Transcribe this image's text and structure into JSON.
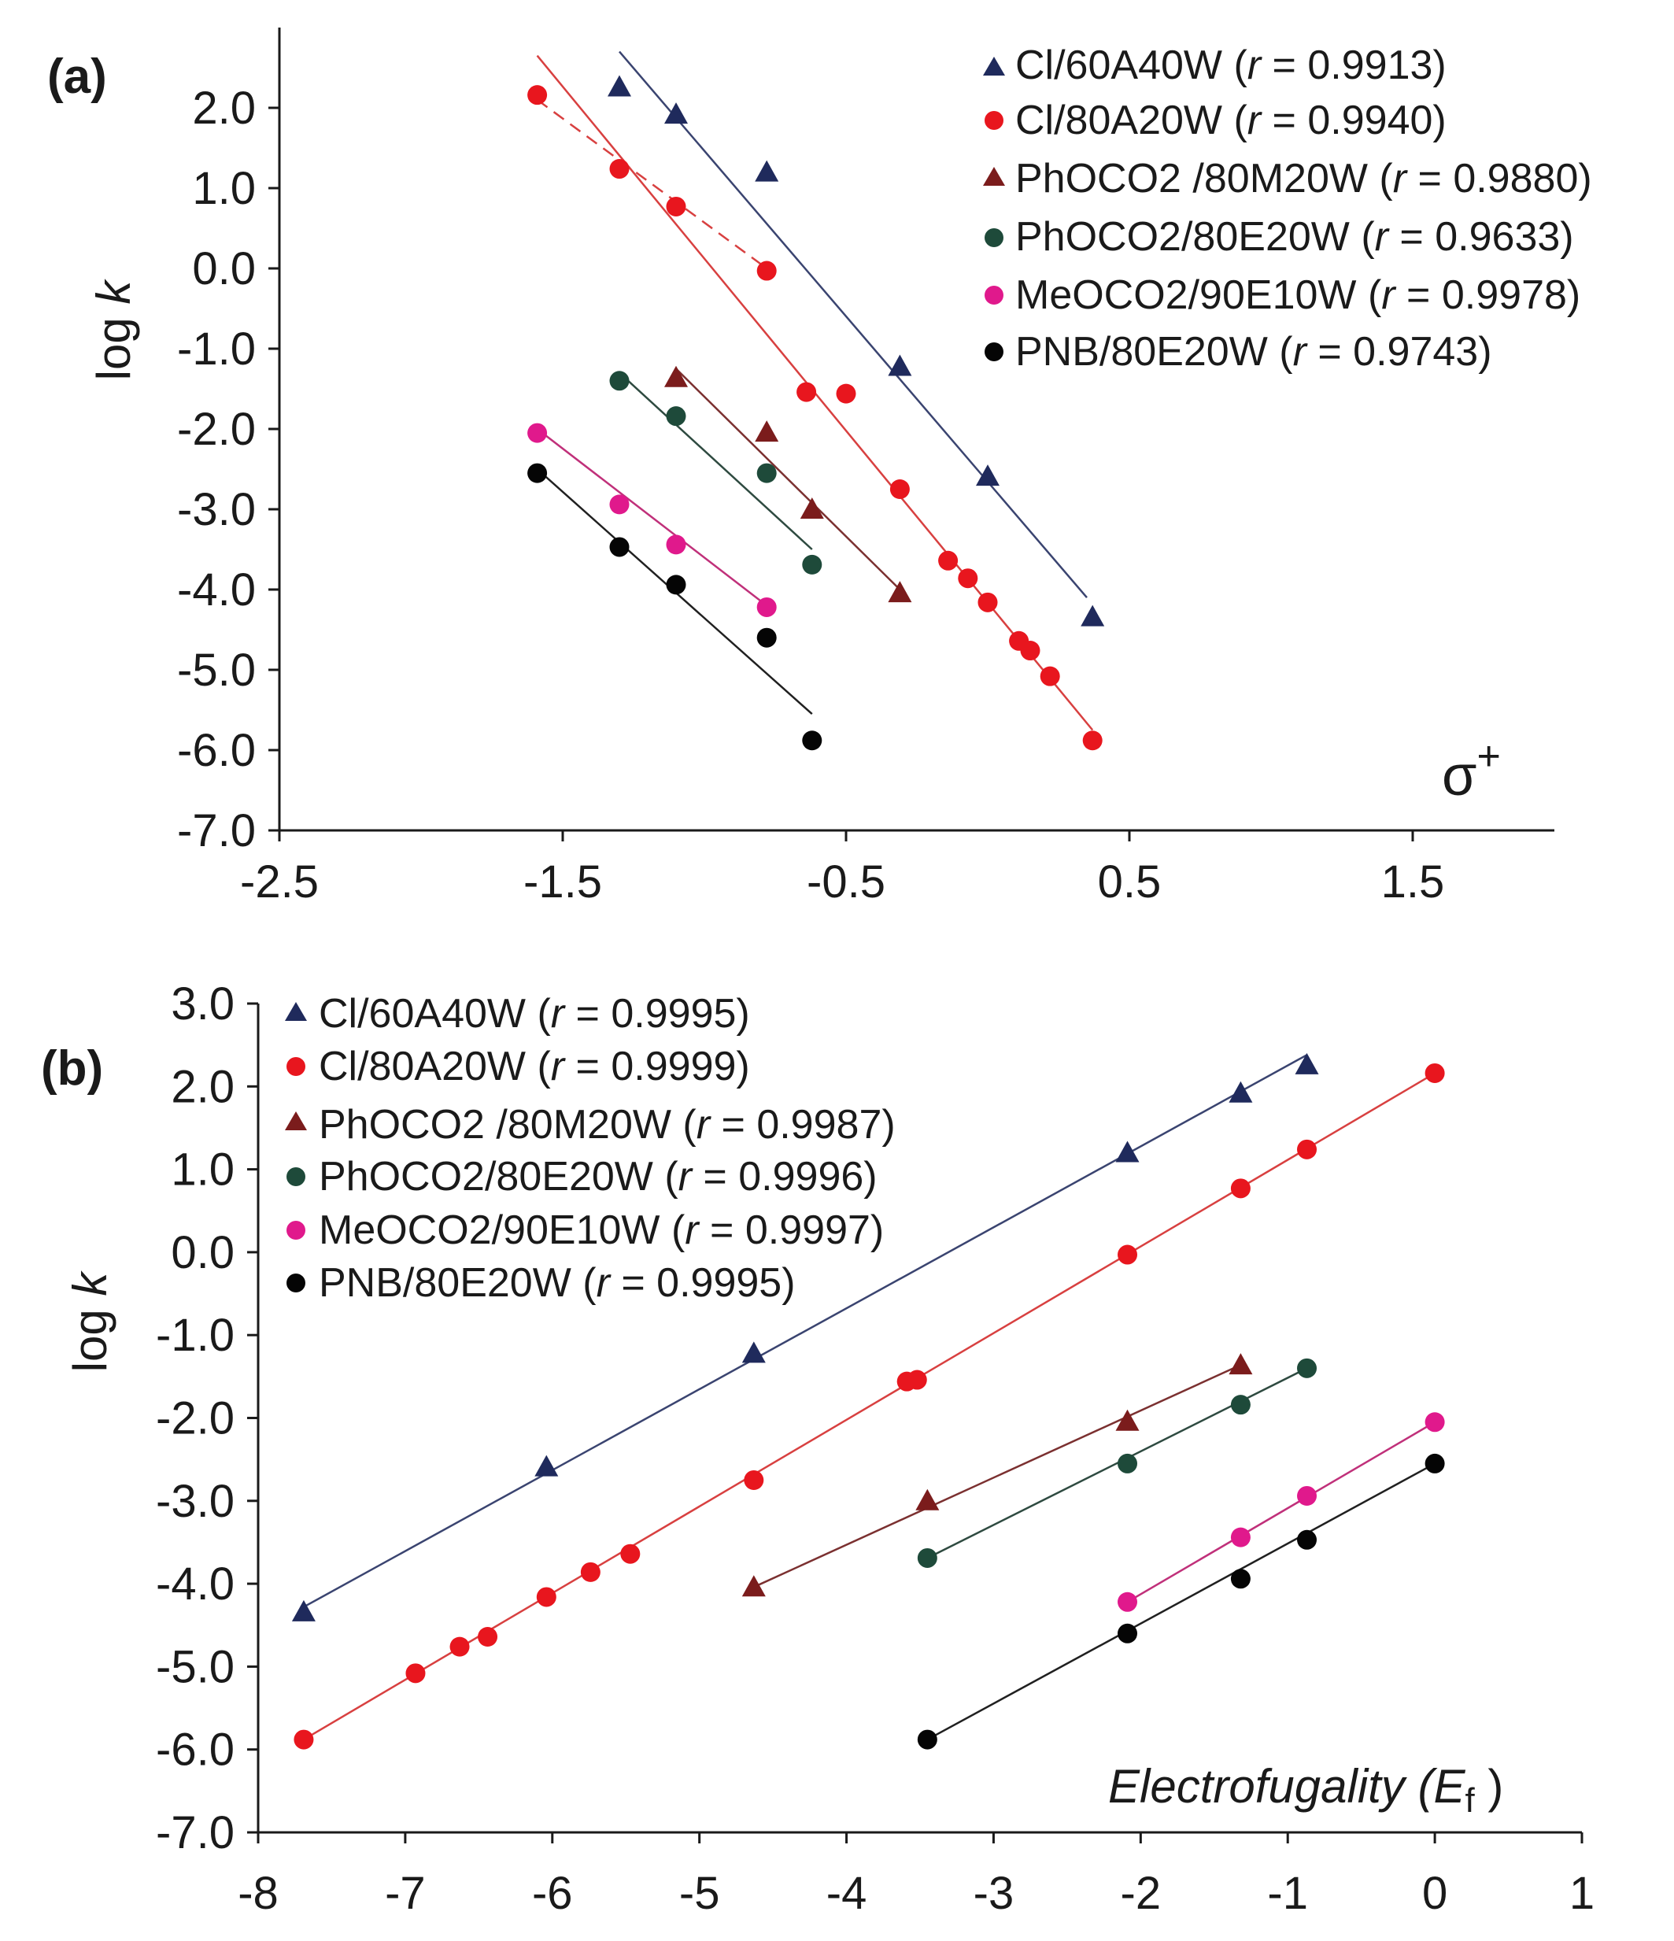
{
  "chart_data": [
    {
      "id": "a",
      "type": "scatter",
      "panel_label": "(a)",
      "xlabel": "σ+",
      "ylabel": "log k",
      "xlim": [
        -2.5,
        2.0
      ],
      "ylim": [
        -7.0,
        3.0
      ],
      "xticks": [
        -2.5,
        -1.5,
        -0.5,
        0.5,
        1.5
      ],
      "xtick_labels": [
        "-2.5",
        "-1.5",
        "-0.5",
        "0.5",
        "1.5"
      ],
      "yticks": [
        -7,
        -6,
        -5,
        -4,
        -3,
        -2,
        -1,
        0,
        1,
        2
      ],
      "ytick_labels": [
        "-7.0",
        "-6.0",
        "-5.0",
        "-4.0",
        "-3.0",
        "-2.0",
        "-1.0",
        "0.0",
        "1.0",
        "2.0"
      ],
      "series": [
        {
          "name": "Cl/60A40W",
          "r": "0.9913",
          "marker": "triangle",
          "color": "#1f2a5c",
          "line_color": "#3a4470",
          "x": [
            -1.3,
            -1.1,
            -0.78,
            -0.31,
            0.0,
            0.37
          ],
          "y": [
            2.26,
            1.92,
            1.2,
            -1.22,
            -2.59,
            -4.34
          ],
          "fit": [
            [
              -1.3,
              2.7
            ],
            [
              0.35,
              -4.1
            ]
          ]
        },
        {
          "name": "Cl/80A20W",
          "r": "0.9940",
          "marker": "circle",
          "color": "#e8161e",
          "line_color": "#d84040",
          "x": [
            -1.59,
            -1.3,
            -1.1,
            -0.78,
            -0.64,
            -0.5,
            -0.31,
            -0.14,
            -0.07,
            0.0,
            0.11,
            0.15,
            0.22,
            0.37
          ],
          "y": [
            2.16,
            1.24,
            0.77,
            -0.03,
            -1.54,
            -1.56,
            -2.75,
            -3.64,
            -3.86,
            -4.16,
            -4.64,
            -4.76,
            -5.08,
            -5.88
          ],
          "fit": [
            [
              -1.59,
              2.65
            ],
            [
              0.37,
              -5.75
            ]
          ],
          "fit_dashed": [
            [
              -1.59,
              2.1
            ],
            [
              -0.78,
              0.0
            ]
          ]
        },
        {
          "name": "PhOCO2 /80M20W",
          "r": "0.9880",
          "marker": "triangle",
          "color": "#7b1c1c",
          "line_color": "#7b3030",
          "x": [
            -1.1,
            -0.78,
            -0.62,
            -0.31
          ],
          "y": [
            -1.36,
            -2.04,
            -3.0,
            -4.04
          ],
          "fit": [
            [
              -1.1,
              -1.25
            ],
            [
              -0.31,
              -4.0
            ]
          ]
        },
        {
          "name": "PhOCO2/80E20W",
          "r": "0.9633",
          "marker": "circle",
          "color": "#1e4a3a",
          "line_color": "#2e4a40",
          "x": [
            -1.3,
            -1.1,
            -0.78,
            -0.62
          ],
          "y": [
            -1.4,
            -1.84,
            -2.55,
            -3.69
          ],
          "fit": [
            [
              -1.3,
              -1.3
            ],
            [
              -0.62,
              -3.5
            ]
          ]
        },
        {
          "name": "MeOCO2/90E10W",
          "r": "0.9978",
          "marker": "circle",
          "color": "#e0198c",
          "line_color": "#c0307a",
          "x": [
            -1.59,
            -1.3,
            -1.1,
            -0.78
          ],
          "y": [
            -2.05,
            -2.94,
            -3.44,
            -4.22
          ],
          "fit": [
            [
              -1.59,
              -2.0
            ],
            [
              -0.78,
              -4.2
            ]
          ]
        },
        {
          "name": "PNB/80E20W",
          "r": "0.9743",
          "marker": "circle",
          "color": "#050505",
          "line_color": "#202020",
          "x": [
            -1.59,
            -1.3,
            -1.1,
            -0.78,
            -0.62
          ],
          "y": [
            -2.55,
            -3.47,
            -3.94,
            -4.6,
            -5.88
          ],
          "fit": [
            [
              -1.59,
              -2.5
            ],
            [
              -0.62,
              -5.55
            ]
          ]
        }
      ]
    },
    {
      "id": "b",
      "type": "scatter",
      "panel_label": "(b)",
      "xlabel": "Electrofugality (Ef)",
      "ylabel": "log k",
      "xlim": [
        -8,
        1
      ],
      "ylim": [
        -7.0,
        3.0
      ],
      "xticks": [
        -8,
        -7,
        -6,
        -5,
        -4,
        -3,
        -2,
        -1,
        0,
        1
      ],
      "xtick_labels": [
        "-8",
        "-7",
        "-6",
        "-5",
        "-4",
        "-3",
        "-2",
        "-1",
        "0",
        "1"
      ],
      "yticks": [
        -7,
        -6,
        -5,
        -4,
        -3,
        -2,
        -1,
        0,
        1,
        2,
        3
      ],
      "ytick_labels": [
        "-7.0",
        "-6.0",
        "-5.0",
        "-4.0",
        "-3.0",
        "-2.0",
        "-1.0",
        "0.0",
        "1.0",
        "2.0",
        "3.0"
      ],
      "series": [
        {
          "name": "Cl/60A40W",
          "r": "0.9995",
          "marker": "triangle",
          "color": "#1f2a5c",
          "line_color": "#3a4470",
          "x": [
            -7.69,
            -6.04,
            -4.63,
            -2.09,
            -1.32,
            -0.87
          ],
          "y": [
            -4.34,
            -2.59,
            -1.22,
            1.2,
            1.92,
            2.26
          ],
          "fit": [
            [
              -7.69,
              -4.28
            ],
            [
              -0.87,
              2.38
            ]
          ]
        },
        {
          "name": "Cl/80A20W",
          "r": "0.9999",
          "marker": "circle",
          "color": "#e8161e",
          "line_color": "#d84040",
          "x": [
            -7.69,
            -6.93,
            -6.63,
            -6.44,
            -6.04,
            -5.74,
            -5.47,
            -4.63,
            -3.59,
            -3.52,
            -2.09,
            -1.32,
            -0.87,
            0.0
          ],
          "y": [
            -5.88,
            -5.08,
            -4.76,
            -4.64,
            -4.16,
            -3.86,
            -3.64,
            -2.75,
            -1.56,
            -1.54,
            -0.03,
            0.77,
            1.24,
            2.16
          ],
          "fit": [
            [
              -7.69,
              -5.88
            ],
            [
              0.0,
              2.16
            ]
          ]
        },
        {
          "name": "PhOCO2 /80M20W",
          "r": "0.9987",
          "marker": "triangle",
          "color": "#7b1c1c",
          "line_color": "#7b3030",
          "x": [
            -4.63,
            -3.45,
            -2.09,
            -1.32
          ],
          "y": [
            -4.04,
            -3.0,
            -2.04,
            -1.36
          ],
          "fit": [
            [
              -4.63,
              -4.04
            ],
            [
              -1.32,
              -1.36
            ]
          ]
        },
        {
          "name": "PhOCO2/80E20W",
          "r": "0.9996",
          "marker": "circle",
          "color": "#1e4a3a",
          "line_color": "#2e4a40",
          "x": [
            -3.45,
            -2.09,
            -1.32,
            -0.87
          ],
          "y": [
            -3.69,
            -2.55,
            -1.84,
            -1.4
          ],
          "fit": [
            [
              -3.45,
              -3.69
            ],
            [
              -0.87,
              -1.4
            ]
          ]
        },
        {
          "name": "MeOCO2/90E10W",
          "r": "0.9997",
          "marker": "circle",
          "color": "#e0198c",
          "line_color": "#c0307a",
          "x": [
            -2.09,
            -1.32,
            -0.87,
            0.0
          ],
          "y": [
            -4.22,
            -3.44,
            -2.94,
            -2.05
          ],
          "fit": [
            [
              -2.09,
              -4.22
            ],
            [
              0.0,
              -2.05
            ]
          ]
        },
        {
          "name": "PNB/80E20W",
          "r": "0.9995",
          "marker": "circle",
          "color": "#050505",
          "line_color": "#202020",
          "x": [
            -3.45,
            -2.09,
            -1.32,
            -0.87,
            0.0
          ],
          "y": [
            -5.88,
            -4.6,
            -3.94,
            -3.47,
            -2.55
          ],
          "fit": [
            [
              -3.45,
              -5.88
            ],
            [
              0.0,
              -2.55
            ]
          ]
        }
      ]
    }
  ]
}
